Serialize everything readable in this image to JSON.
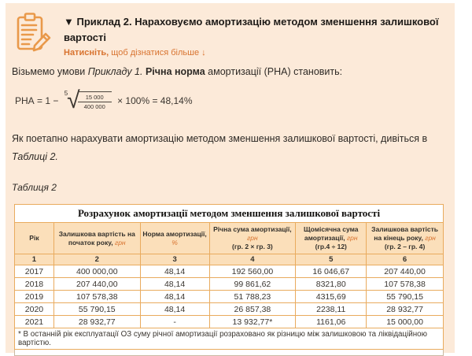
{
  "header": {
    "collapse_arrow": "▼",
    "title": "Приклад 2. Нараховуємо амортизацію методом зменшення залишкової вартості",
    "link_bold": "Натисніть,",
    "link_rest": " щоб дізнатися більше ↓"
  },
  "intro": {
    "pre": "Візьмемо умови ",
    "example_ref": "Прикладу 1.",
    "bold": " Річна норма",
    "post": " амортизації (РНА) становить:"
  },
  "formula": {
    "lhs": "РНА = 1 − ",
    "root_index": "5",
    "radical": "√",
    "numerator": "15 000",
    "denominator": "400 000",
    "rhs": " × 100% = 48,14%"
  },
  "paragraph": {
    "pre": "Як поетапно нарахувати амортизацію методом зменшення залишкової вартості, дивіться в ",
    "table_ref": "Таблиці 2."
  },
  "table_caption": "Таблиця 2",
  "table": {
    "title": "Розрахунок амортизації методом зменшення залишкової вартості",
    "columns": [
      {
        "label": "Рік",
        "unit": "",
        "formula": ""
      },
      {
        "label": "Залишкова вартість на початок року,",
        "unit": "грн",
        "formula": ""
      },
      {
        "label": "Норма амортизації,",
        "unit": "%",
        "formula": ""
      },
      {
        "label": "Річна сума амортизації,",
        "unit": "грн",
        "formula": "(гр. 2 × гр. 3)"
      },
      {
        "label": "Щомісячна сума амортизації,",
        "unit": "грн",
        "formula": "(гр.4 ÷ 12)"
      },
      {
        "label": "Залишкова вартість на кінець року,",
        "unit": "грн",
        "formula": "(гр. 2 – гр. 4)"
      }
    ],
    "numbers_row": [
      "1",
      "2",
      "3",
      "4",
      "5",
      "6"
    ],
    "rows": [
      [
        "2017",
        "400 000,00",
        "48,14",
        "192 560,00",
        "16 046,67",
        "207 440,00"
      ],
      [
        "2018",
        "207 440,00",
        "48,14",
        "99 861,62",
        "8321,80",
        "107 578,38"
      ],
      [
        "2019",
        "107 578,38",
        "48,14",
        "51 788,23",
        "4315,69",
        "55 790,15"
      ],
      [
        "2020",
        "55 790,15",
        "48,14",
        "26 857,38",
        "2238,11",
        "28 932,77"
      ],
      [
        "2021",
        "28 932,77",
        "-",
        "13 932,77*",
        "1161,06",
        "15 000,00"
      ]
    ],
    "footnote": "* В останній рік експлуатації ОЗ суму річної амортизації розраховано як різницю між залишковою та ліквідаційною вартістю."
  },
  "colors": {
    "content_bg": "#fcead9",
    "accent_orange": "#d8732f",
    "icon_orange": "#e9994a",
    "table_header_bg": "#fbdfba",
    "table_border": "#e9ab5e"
  }
}
